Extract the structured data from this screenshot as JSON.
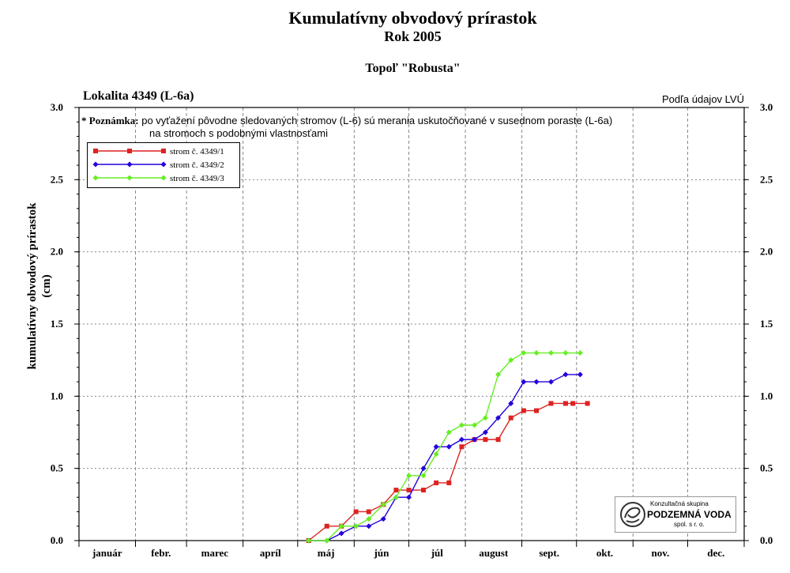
{
  "header": {
    "title": "Kumulatívny obvodový prírastok",
    "subtitle": "Rok 2005",
    "species": "Topoľ \"Robusta\"",
    "location": "Lokalita 4349 (L-6a)",
    "source": "Podľa údajov LVÚ"
  },
  "note": {
    "label": "* Poznámka:",
    "line1": "po vyťažení pôvodne sledovaných stromov (L-6) sú merania uskutočňované v susednom poraste (L-6a)",
    "line2": "na stromoch s podobnými vlastnosťami"
  },
  "logo": {
    "line1": "Konzultačná skupina",
    "line2": "PODZEMNÁ VODA",
    "line3": "spol. s r. o."
  },
  "chart_data": {
    "type": "line",
    "ylabel_line1": "kumulatívny obvodový prírastok",
    "ylabel_line2": "(cm)",
    "ylim": [
      0,
      3.0
    ],
    "yticks": [
      0.0,
      0.5,
      1.0,
      1.5,
      2.0,
      2.5,
      3.0
    ],
    "ytick_labels": [
      "0.0",
      "0.5",
      "1.0",
      "1.5",
      "2.0",
      "2.5",
      "3.0"
    ],
    "months": [
      "január",
      "febr.",
      "marec",
      "apríl",
      "máj",
      "jún",
      "júl",
      "august",
      "sept.",
      "okt.",
      "nov.",
      "dec."
    ],
    "x_unit": "day of year 2005",
    "xlim": [
      1,
      366
    ],
    "grid": true,
    "legend_position": "top-left",
    "series": [
      {
        "name": "strom č. 4349/1",
        "color": "#dd2222",
        "marker": "square",
        "x": [
          127,
          137,
          145,
          153,
          160,
          168,
          175,
          182,
          190,
          197,
          204,
          211,
          218,
          224,
          231,
          238,
          245,
          252,
          260,
          268,
          272,
          280
        ],
        "y": [
          0.0,
          0.1,
          0.1,
          0.2,
          0.2,
          0.25,
          0.35,
          0.35,
          0.35,
          0.4,
          0.4,
          0.65,
          0.7,
          0.7,
          0.7,
          0.85,
          0.9,
          0.9,
          0.95,
          0.95,
          0.95,
          0.95
        ]
      },
      {
        "name": "strom č. 4349/2",
        "color": "#2200dd",
        "marker": "diamond",
        "x": [
          127,
          137,
          145,
          153,
          160,
          168,
          175,
          182,
          190,
          197,
          204,
          211,
          218,
          224,
          231,
          238,
          245,
          252,
          260,
          268,
          276
        ],
        "y": [
          0.0,
          0.0,
          0.05,
          0.1,
          0.1,
          0.15,
          0.3,
          0.3,
          0.5,
          0.65,
          0.65,
          0.7,
          0.7,
          0.75,
          0.85,
          0.95,
          1.1,
          1.1,
          1.1,
          1.15,
          1.15
        ]
      },
      {
        "name": "strom č. 4349/3",
        "color": "#66ee22",
        "marker": "diamond",
        "x": [
          127,
          137,
          145,
          153,
          160,
          168,
          175,
          182,
          190,
          197,
          204,
          211,
          218,
          224,
          231,
          238,
          245,
          252,
          260,
          268,
          276
        ],
        "y": [
          0.0,
          0.0,
          0.1,
          0.1,
          0.15,
          0.25,
          0.3,
          0.45,
          0.45,
          0.6,
          0.75,
          0.8,
          0.8,
          0.85,
          1.15,
          1.25,
          1.3,
          1.3,
          1.3,
          1.3,
          1.3
        ]
      }
    ]
  }
}
